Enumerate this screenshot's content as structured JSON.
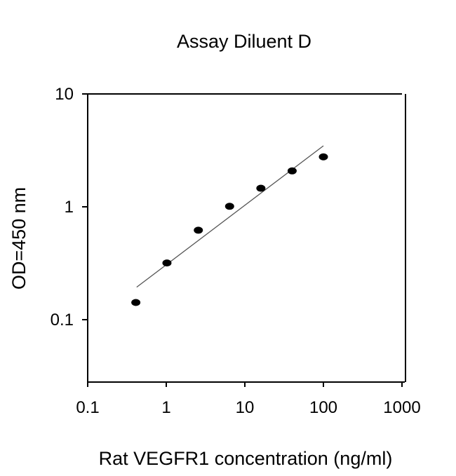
{
  "chart_data": {
    "type": "scatter",
    "title": "Assay Diluent D",
    "xlabel": "Rat VEGFR1 concentration (ng/ml)",
    "ylabel": "OD=450 nm",
    "x_scale": "log",
    "y_scale": "log",
    "xlim": [
      0.1,
      1000
    ],
    "ylim": [
      0.028,
      10
    ],
    "x_ticks": [
      0.1,
      1,
      10,
      100,
      1000
    ],
    "x_tick_labels": [
      "0.1",
      "1",
      "10",
      "100",
      "1000"
    ],
    "y_ticks": [
      0.1,
      1,
      10
    ],
    "y_tick_labels": [
      "0.1",
      "1",
      "10"
    ],
    "grid": false,
    "points": [
      {
        "x": 0.41,
        "y": 0.142
      },
      {
        "x": 1.02,
        "y": 0.318
      },
      {
        "x": 2.56,
        "y": 0.62
      },
      {
        "x": 6.4,
        "y": 1.01
      },
      {
        "x": 16,
        "y": 1.46
      },
      {
        "x": 40,
        "y": 2.08
      },
      {
        "x": 100,
        "y": 2.77
      }
    ],
    "fit_line": [
      {
        "x": 0.42,
        "y": 0.194
      },
      {
        "x": 100,
        "y": 3.47
      }
    ],
    "colors": {
      "points": "#000000",
      "fit_line": "#555555",
      "axes": "#000000"
    }
  }
}
